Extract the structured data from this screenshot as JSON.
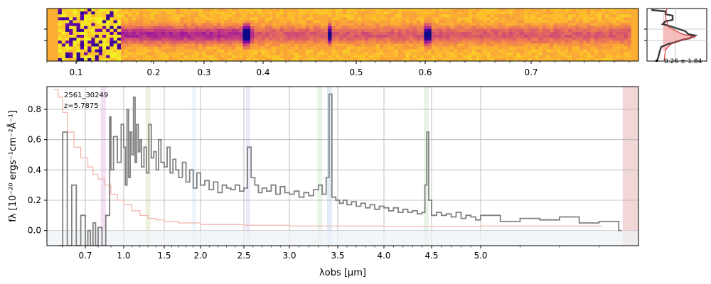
{
  "chart_data": [
    {
      "type": "heatmap",
      "panel": "2D spectrum",
      "x_ticks": [
        {
          "value": 0.1,
          "label": "0.1"
        },
        {
          "value": 0.2,
          "label": "0.2"
        },
        {
          "value": 0.3,
          "label": "0.3"
        },
        {
          "value": 0.4,
          "label": "0.4"
        },
        {
          "value": 0.5,
          "label": "0.5"
        },
        {
          "value": 0.6,
          "label": "0.6"
        },
        {
          "value": 0.7,
          "label": "0.7"
        }
      ],
      "colormap": "plasma",
      "emission_columns_um": [
        2.54,
        3.41,
        4.45
      ]
    },
    {
      "type": "line",
      "panel": "spatial profile",
      "annotation": "0.26 ± 1.84"
    },
    {
      "type": "line",
      "panel": "1D spectrum",
      "annotation_lines": [
        "2561_30249",
        "z=5.7875"
      ],
      "xlabel": "λobs [μm]",
      "ylabel": "fλ [10⁻²⁰ ergs⁻¹cm⁻²Å⁻¹]",
      "xlim": [
        0.53,
        5.4
      ],
      "ylim": [
        -0.1,
        0.95
      ],
      "x_ticks": [
        {
          "value": 0.7,
          "label": "0.7"
        },
        {
          "value": 1.0,
          "label": "1.0"
        },
        {
          "value": 1.5,
          "label": "1.5"
        },
        {
          "value": 2.0,
          "label": "2.0"
        },
        {
          "value": 2.5,
          "label": "2.5"
        },
        {
          "value": 3.0,
          "label": "3.0"
        },
        {
          "value": 3.5,
          "label": "3.5"
        },
        {
          "value": 4.0,
          "label": "4.0"
        },
        {
          "value": 4.5,
          "label": "4.5"
        },
        {
          "value": 5.0,
          "label": "5.0"
        }
      ],
      "y_ticks": [
        {
          "value": 0.0,
          "label": "0.0"
        },
        {
          "value": 0.2,
          "label": "0.2"
        },
        {
          "value": 0.4,
          "label": "0.4"
        },
        {
          "value": 0.6,
          "label": "0.6"
        },
        {
          "value": 0.8,
          "label": "0.8"
        }
      ],
      "grid": true,
      "line_bands_um": [
        {
          "x0": 0.82,
          "x1": 0.86,
          "color": "#d9a3d9"
        },
        {
          "x0": 1.27,
          "x1": 1.33,
          "color": "#c8d9a0"
        },
        {
          "x0": 1.88,
          "x1": 1.94,
          "color": "#cfe4f5"
        },
        {
          "x0": 2.52,
          "x1": 2.57,
          "color": "#c9c4e6"
        },
        {
          "x0": 3.29,
          "x1": 3.34,
          "color": "#b9e0b9"
        },
        {
          "x0": 3.39,
          "x1": 3.44,
          "color": "#a8c8ec"
        },
        {
          "x0": 4.42,
          "x1": 4.47,
          "color": "#b9e0b9"
        },
        {
          "x0": 5.36,
          "x1": 5.4,
          "color": "#d98c8c"
        }
      ],
      "series": [
        {
          "role": "flux",
          "color": "#808080",
          "x": [
            0.58,
            0.6,
            0.62,
            0.64,
            0.66,
            0.68,
            0.7,
            0.72,
            0.74,
            0.76,
            0.78,
            0.8,
            0.83,
            0.86,
            0.89,
            0.9,
            0.92,
            0.95,
            0.98,
            1.0,
            1.02,
            1.04,
            1.06,
            1.08,
            1.1,
            1.12,
            1.14,
            1.16,
            1.18,
            1.2,
            1.22,
            1.25,
            1.28,
            1.31,
            1.34,
            1.37,
            1.4,
            1.43,
            1.46,
            1.5,
            1.54,
            1.58,
            1.62,
            1.66,
            1.7,
            1.75,
            1.8,
            1.85,
            1.9,
            1.95,
            2.0,
            2.05,
            2.1,
            2.15,
            2.2,
            2.25,
            2.3,
            2.35,
            2.4,
            2.45,
            2.5,
            2.54,
            2.58,
            2.62,
            2.66,
            2.7,
            2.75,
            2.8,
            2.85,
            2.9,
            2.95,
            3.0,
            3.05,
            3.1,
            3.15,
            3.2,
            3.25,
            3.3,
            3.34,
            3.38,
            3.41,
            3.44,
            3.48,
            3.52,
            3.56,
            3.6,
            3.65,
            3.7,
            3.75,
            3.8,
            3.85,
            3.9,
            3.95,
            4.0,
            4.05,
            4.1,
            4.15,
            4.2,
            4.25,
            4.3,
            4.35,
            4.4,
            4.43,
            4.45,
            4.47,
            4.5,
            4.55,
            4.6,
            4.65,
            4.7,
            4.75,
            4.8,
            4.85,
            4.9,
            4.95,
            5.0,
            5.05,
            5.1,
            5.15,
            5.2,
            5.25,
            5.3,
            5.35
          ],
          "y": [
            -0.1,
            0.65,
            -0.1,
            0.3,
            -0.1,
            0.1,
            -0.1,
            0.0,
            -0.1,
            0.05,
            -0.1,
            0.02,
            -0.1,
            0.1,
            0.75,
            0.4,
            0.62,
            0.45,
            0.7,
            0.55,
            0.3,
            0.8,
            0.35,
            0.65,
            0.5,
            0.88,
            0.45,
            0.7,
            0.52,
            0.6,
            0.42,
            0.55,
            0.38,
            0.7,
            0.48,
            0.52,
            0.4,
            0.6,
            0.45,
            0.42,
            0.55,
            0.38,
            0.47,
            0.4,
            0.35,
            0.45,
            0.32,
            0.4,
            0.28,
            0.38,
            0.3,
            0.33,
            0.27,
            0.32,
            0.25,
            0.3,
            0.28,
            0.27,
            0.3,
            0.26,
            0.28,
            0.55,
            0.35,
            0.3,
            0.25,
            0.28,
            0.26,
            0.3,
            0.24,
            0.29,
            0.25,
            0.24,
            0.26,
            0.22,
            0.25,
            0.23,
            0.27,
            0.3,
            0.24,
            0.35,
            0.9,
            0.22,
            0.2,
            0.18,
            0.2,
            0.17,
            0.19,
            0.16,
            0.18,
            0.15,
            0.17,
            0.14,
            0.16,
            0.15,
            0.13,
            0.15,
            0.12,
            0.14,
            0.12,
            0.13,
            0.11,
            0.12,
            0.3,
            0.65,
            0.2,
            0.1,
            0.12,
            0.1,
            0.11,
            0.09,
            0.12,
            0.08,
            0.1,
            0.09,
            0.07,
            0.1,
            0.06,
            0.08,
            0.07,
            0.09,
            0.05,
            0.06,
            0.0
          ],
          "line_width": 1.8
        },
        {
          "role": "uncertainty",
          "color": "#f4b0a8",
          "x": [
            0.56,
            0.58,
            0.6,
            0.62,
            0.65,
            0.68,
            0.72,
            0.76,
            0.8,
            0.85,
            0.9,
            0.95,
            1.0,
            1.1,
            1.2,
            1.3,
            1.4,
            1.5,
            1.7,
            2.0,
            2.5,
            3.0,
            3.5,
            4.0,
            4.5,
            5.0,
            5.3
          ],
          "y": [
            0.93,
            0.88,
            0.78,
            0.65,
            0.55,
            0.48,
            0.42,
            0.37,
            0.34,
            0.3,
            0.24,
            0.2,
            0.17,
            0.13,
            0.1,
            0.08,
            0.07,
            0.06,
            0.05,
            0.04,
            0.035,
            0.03,
            0.03,
            0.028,
            0.025,
            0.03,
            0.03
          ],
          "line_width": 1.2
        }
      ]
    }
  ]
}
